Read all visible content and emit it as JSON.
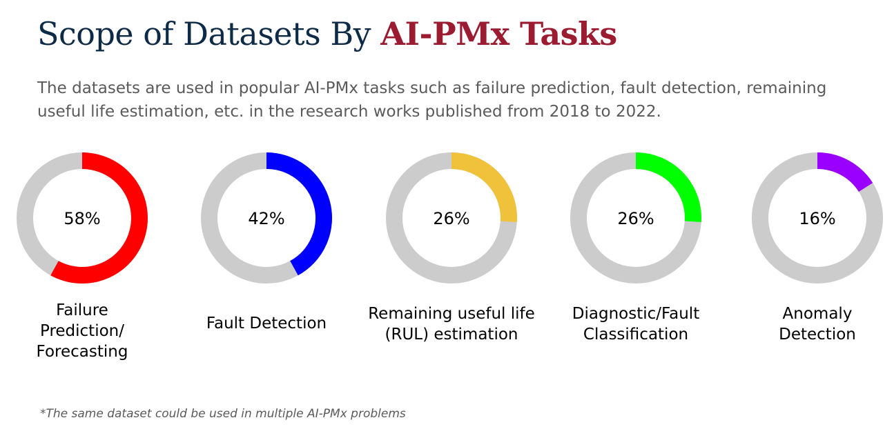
{
  "header": {
    "title_main": "Scope of Datasets By ",
    "title_accent": "AI-PMx Tasks",
    "subtitle": "The datasets are used in popular AI-PMx tasks such as failure prediction, fault detection, remaining useful life estimation, etc. in the research works published from 2018 to 2022."
  },
  "footnote": "*The same dataset could be used in multiple AI-PMx problems",
  "colors": {
    "track": "#cccccc",
    "title": "#0d2b47",
    "accent": "#9b1b30",
    "subtitle": "#5a5a5a"
  },
  "chart_data": {
    "type": "pie",
    "style": "donut",
    "unit": "%",
    "categories": [
      "Failure Prediction/ Forecasting",
      "Fault Detection",
      "Remaining useful life (RUL) estimation",
      "Diagnostic/Fault Classification",
      "Anomaly Detection"
    ],
    "category_lines": [
      [
        "Failure",
        "Prediction/",
        "Forecasting"
      ],
      [
        "Fault Detection"
      ],
      [
        "Remaining useful life",
        "(RUL) estimation"
      ],
      [
        "Diagnostic/Fault",
        "Classification"
      ],
      [
        "Anomaly",
        "Detection"
      ]
    ],
    "values": [
      58,
      42,
      26,
      26,
      16
    ],
    "value_labels": [
      "58%",
      "42%",
      "26%",
      "26%",
      "16%"
    ],
    "colors": [
      "#ff0000",
      "#0000ff",
      "#f0c23b",
      "#00ff00",
      "#9900ff"
    ]
  }
}
